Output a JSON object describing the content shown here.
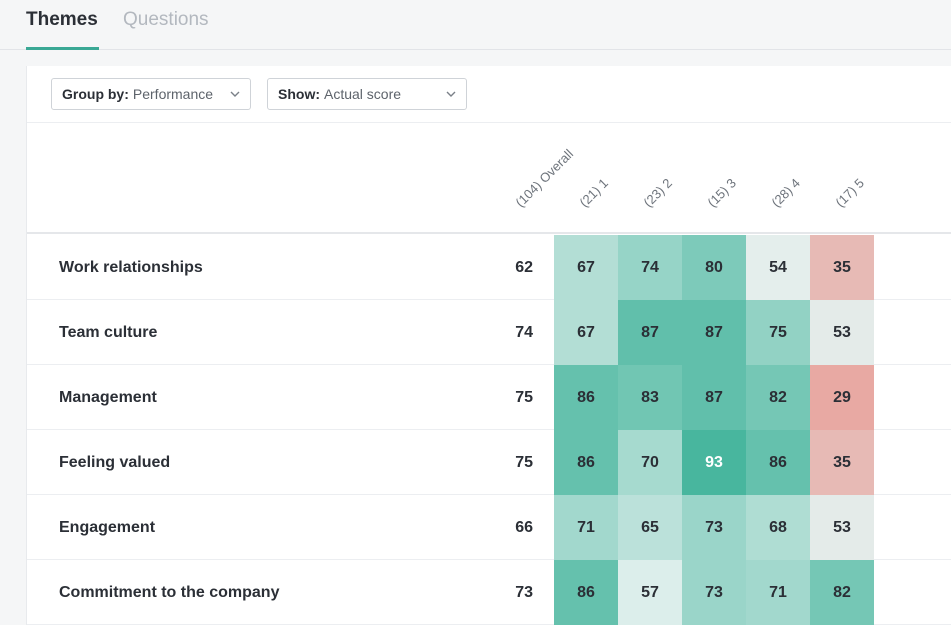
{
  "tabs": [
    {
      "label": "Themes",
      "active": true
    },
    {
      "label": "Questions",
      "active": false
    }
  ],
  "toolbar": {
    "group_by": {
      "label": "Group by:",
      "value": "Performance"
    },
    "show": {
      "label": "Show:",
      "value": "Actual score"
    }
  },
  "columns": [
    "(104) Overall",
    "(21) 1",
    "(23) 2",
    "(15) 3",
    "(28) 4",
    "(17) 5"
  ],
  "rows": [
    {
      "label": "Work relationships",
      "overall": 62,
      "scores": [
        67,
        74,
        80,
        54,
        35
      ]
    },
    {
      "label": "Team culture",
      "overall": 74,
      "scores": [
        67,
        87,
        87,
        75,
        53
      ]
    },
    {
      "label": "Management",
      "overall": 75,
      "scores": [
        86,
        83,
        87,
        82,
        29
      ]
    },
    {
      "label": "Feeling valued",
      "overall": 75,
      "scores": [
        86,
        70,
        93,
        86,
        35
      ]
    },
    {
      "label": "Engagement",
      "overall": 66,
      "scores": [
        71,
        65,
        73,
        68,
        53
      ]
    },
    {
      "label": "Commitment to the company",
      "overall": 73,
      "scores": [
        86,
        57,
        73,
        71,
        82
      ]
    }
  ],
  "colors": {
    "accent": "#3aa895",
    "high": "#4cb9a1",
    "low": "#e8a9a3",
    "neutral": "#e4f1ef"
  }
}
